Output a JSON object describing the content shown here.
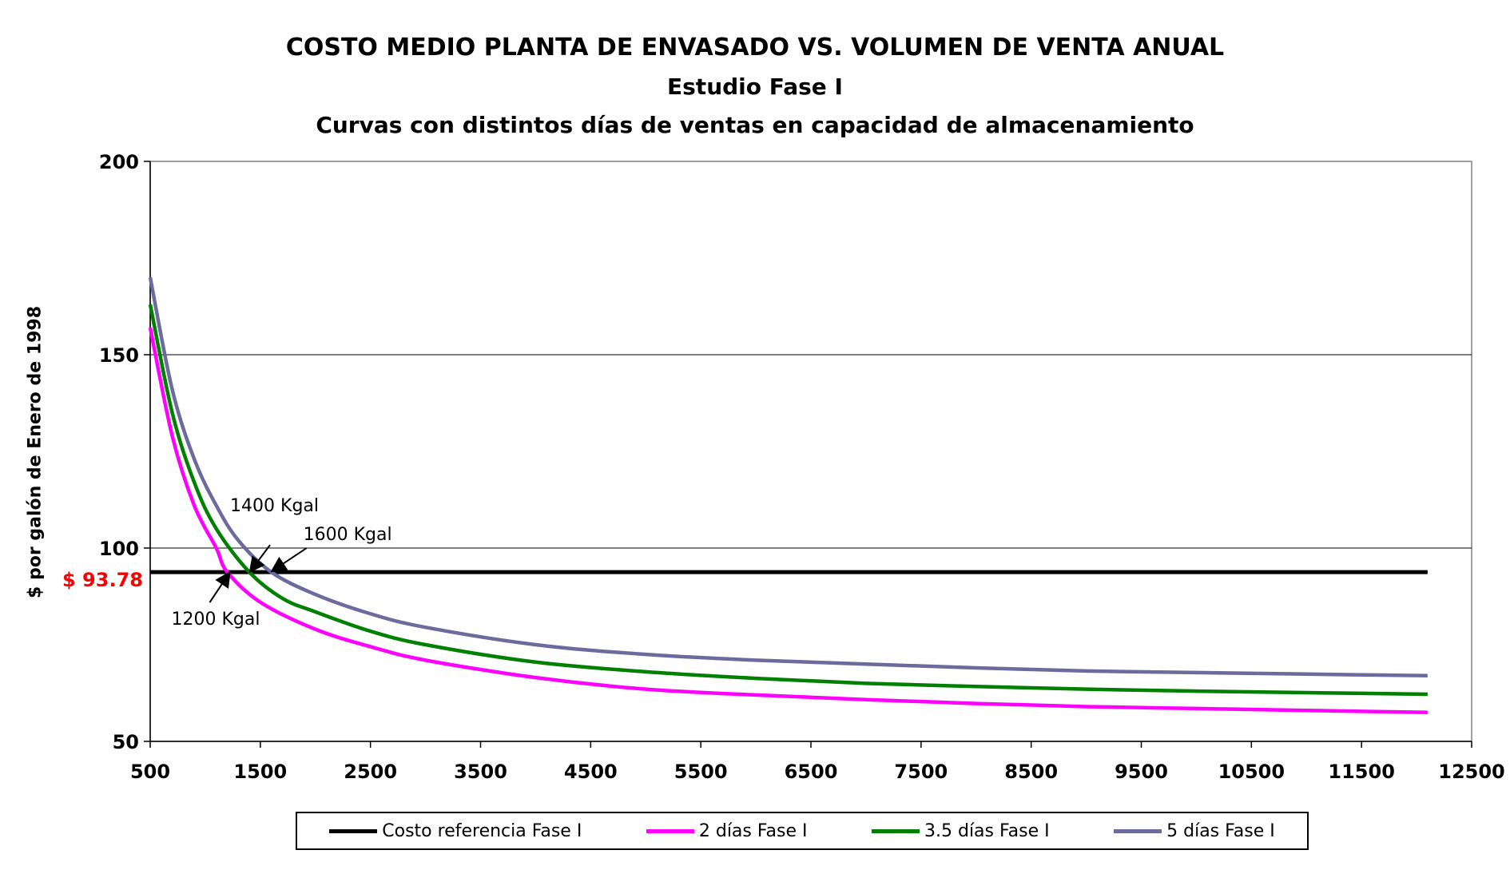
{
  "chart_data": {
    "type": "line",
    "title": "COSTO MEDIO PLANTA DE ENVASADO VS. VOLUMEN DE VENTA ANUAL",
    "subtitle": "Estudio Fase I",
    "subtitle2": "Curvas con distintos días de ventas en capacidad de almacenamiento",
    "ylabel": "$ por galón de Enero de 1998",
    "xlim": [
      500,
      12500
    ],
    "ylim": [
      50,
      200
    ],
    "x_ticks": [
      "500",
      "1500",
      "2500",
      "3500",
      "4500",
      "5500",
      "6500",
      "7500",
      "8500",
      "9500",
      "10500",
      "11500",
      "12500"
    ],
    "y_ticks": [
      "50",
      "100",
      "150",
      "200"
    ],
    "grid": "horizontal",
    "legend_position": "bottom",
    "reference_value_label": "$ 93.78",
    "series": [
      {
        "name": "Costo referencia Fase I",
        "color": "#000000",
        "x": [
          500,
          12100
        ],
        "y": [
          93.78,
          93.78
        ]
      },
      {
        "name": "2 días Fase I",
        "color": "#ff00ff",
        "x": [
          500,
          700,
          900,
          1100,
          1200,
          1500,
          2000,
          2500,
          3000,
          4000,
          5000,
          6000,
          7000,
          8000,
          9000,
          10000,
          11000,
          12100
        ],
        "y": [
          157,
          129,
          111,
          100,
          93.78,
          86,
          79,
          74.5,
          71,
          66.5,
          63.5,
          62,
          60.8,
          59.8,
          59,
          58.5,
          58,
          57.5
        ]
      },
      {
        "name": "3.5 días Fase I",
        "color": "#008000",
        "x": [
          500,
          700,
          900,
          1100,
          1400,
          1700,
          2000,
          2500,
          3000,
          4000,
          5000,
          6000,
          7000,
          8000,
          9000,
          10000,
          11000,
          12100
        ],
        "y": [
          163,
          135,
          117,
          105,
          93.78,
          87,
          83.5,
          78.5,
          75,
          70.5,
          68,
          66.3,
          65,
          64.2,
          63.5,
          63,
          62.6,
          62.2
        ]
      },
      {
        "name": "5 días Fase I",
        "color": "#6b6b9e",
        "x": [
          500,
          700,
          900,
          1100,
          1300,
          1600,
          2000,
          2500,
          3000,
          4000,
          5000,
          6000,
          7000,
          8000,
          9000,
          10000,
          11000,
          12100
        ],
        "y": [
          170,
          141,
          123,
          111,
          102,
          93.78,
          88,
          83,
          79.5,
          75,
          72.5,
          71,
          70,
          69,
          68.2,
          67.8,
          67.4,
          67
        ]
      }
    ],
    "annotations": [
      {
        "text": "1200 Kgal",
        "x": 1200,
        "y": 93.78
      },
      {
        "text": "1400 Kgal",
        "x": 1400,
        "y": 93.78
      },
      {
        "text": "1600 Kgal",
        "x": 1600,
        "y": 93.78
      }
    ]
  }
}
